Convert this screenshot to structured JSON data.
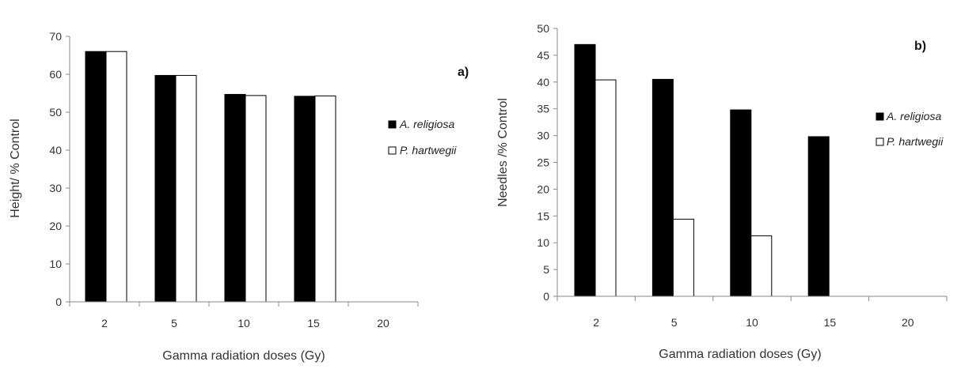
{
  "chart_data": [
    {
      "type": "bar",
      "panel_label": "a)",
      "categories": [
        "2",
        "5",
        "10",
        "15",
        "20"
      ],
      "series": [
        {
          "name": "A. religiosa",
          "color": "#000000",
          "values": [
            66,
            59.7,
            54.7,
            54.2,
            null
          ]
        },
        {
          "name": "P. hartwegii",
          "color": "#ffffff",
          "values": [
            66,
            59.7,
            54.4,
            54.3,
            null
          ]
        }
      ],
      "xlabel": "Gamma radiation doses (Gy)",
      "ylabel": "Height/ % Control",
      "ylim": [
        0,
        70
      ],
      "yticks": [
        0,
        10,
        20,
        30,
        40,
        50,
        60,
        70
      ],
      "grid": false,
      "legend_position": "right"
    },
    {
      "type": "bar",
      "panel_label": "b)",
      "categories": [
        "2",
        "5",
        "10",
        "15",
        "20"
      ],
      "series": [
        {
          "name": "A. religiosa",
          "color": "#000000",
          "values": [
            47,
            40.5,
            34.8,
            29.8,
            null
          ]
        },
        {
          "name": "P. hartwegii",
          "color": "#ffffff",
          "values": [
            40.4,
            14.4,
            11.3,
            null,
            null
          ]
        }
      ],
      "xlabel": "Gamma radiation doses (Gy)",
      "ylabel": "Needles /% Control",
      "ylim": [
        0,
        50
      ],
      "yticks": [
        0,
        5,
        10,
        15,
        20,
        25,
        30,
        35,
        40,
        45,
        50
      ],
      "grid": false,
      "legend_position": "right"
    }
  ]
}
